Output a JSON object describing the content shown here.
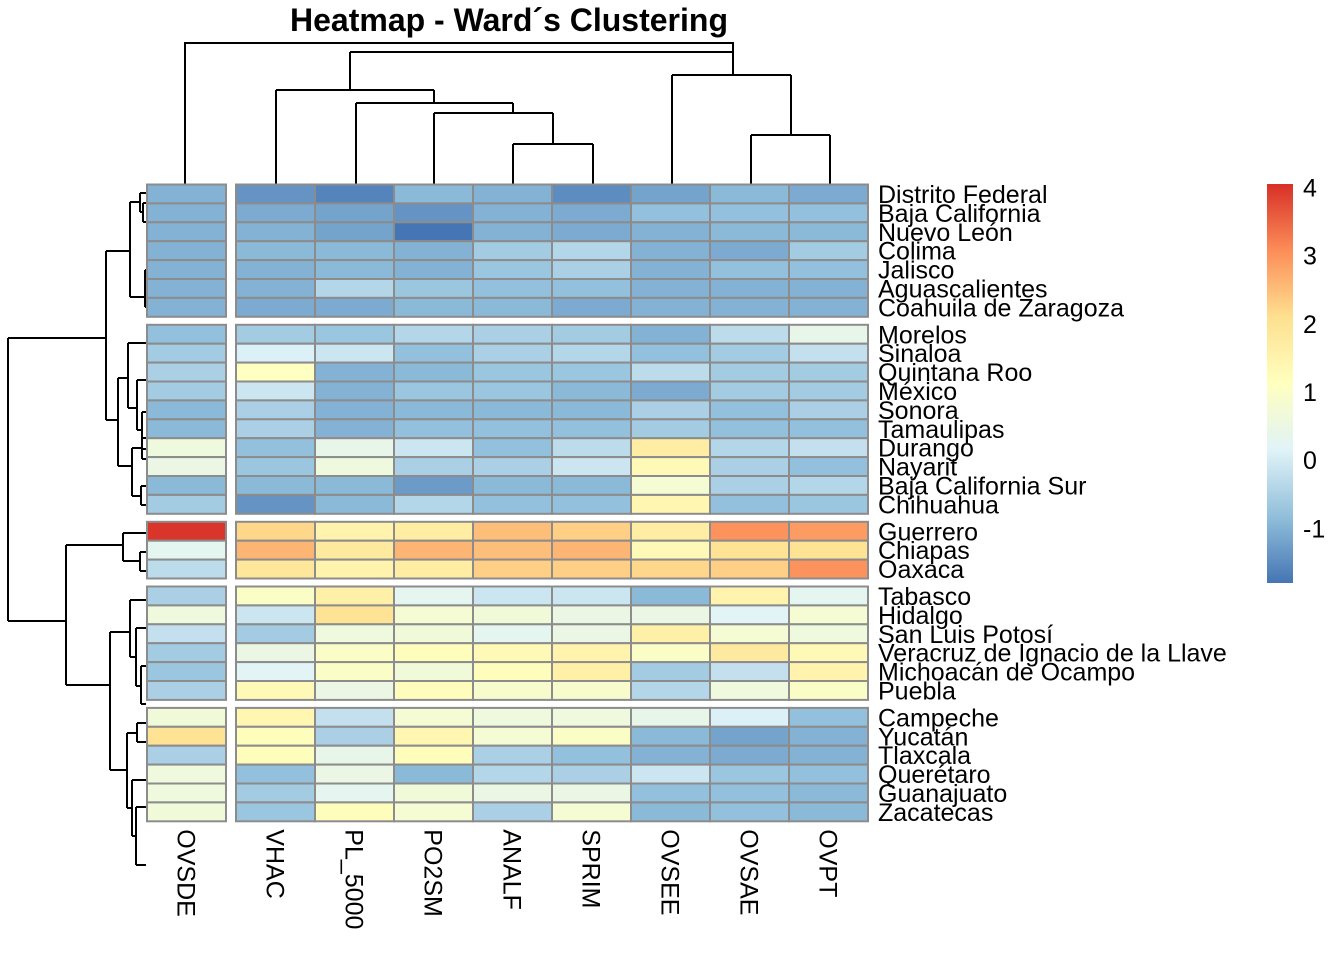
{
  "chart_data": {
    "type": "heatmap",
    "title": "Heatmap - Ward´s Clustering",
    "columns": [
      "OVSDE",
      "VHAC",
      "PL_5000",
      "PO2SM",
      "ANALF",
      "SPRIM",
      "OVSEE",
      "OVSAE",
      "OVPT"
    ],
    "column_gaps_after": [
      0
    ],
    "rows": [
      "Distrito Federal",
      "Baja California",
      "Nuevo León",
      "Colima",
      "Jalisco",
      "Aguascalientes",
      "Coahuila de Zaragoza",
      "Morelos",
      "Sinaloa",
      "Quintana Roo",
      "México",
      "Sonora",
      "Tamaulipas",
      "Durango",
      "Nayarit",
      "Baja California Sur",
      "Chihuahua",
      "Guerrero",
      "Chiapas",
      "Oaxaca",
      "Tabasco",
      "Hidalgo",
      "San Luis Potosí",
      "Veracruz de Ignacio de la Llave",
      "Michoacán de Ocampo",
      "Puebla",
      "Campeche",
      "Yucatán",
      "Tlaxcala",
      "Querétaro",
      "Guanajuato",
      "Zacatecas"
    ],
    "row_gaps_after": [
      6,
      16,
      19,
      25
    ],
    "values": [
      [
        -1.0,
        -1.4,
        -1.6,
        -0.9,
        -1.0,
        -1.5,
        -1.2,
        -0.9,
        -1.1
      ],
      [
        -1.0,
        -1.1,
        -1.2,
        -1.4,
        -1.0,
        -1.1,
        -0.8,
        -0.8,
        -0.8
      ],
      [
        -1.0,
        -1.0,
        -1.2,
        -1.8,
        -1.0,
        -1.1,
        -1.0,
        -0.9,
        -0.9
      ],
      [
        -1.0,
        -0.9,
        -0.9,
        -1.0,
        -0.6,
        -0.4,
        -1.0,
        -1.1,
        -0.6
      ],
      [
        -1.0,
        -1.0,
        -0.9,
        -1.0,
        -0.7,
        -0.5,
        -1.0,
        -0.8,
        -0.8
      ],
      [
        -1.0,
        -1.0,
        -0.4,
        -0.7,
        -0.8,
        -0.8,
        -1.0,
        -1.0,
        -1.0
      ],
      [
        -1.0,
        -1.1,
        -1.1,
        -0.9,
        -0.9,
        -1.1,
        -1.0,
        -1.0,
        -1.0
      ],
      [
        -0.8,
        -0.6,
        -0.7,
        -0.4,
        -0.5,
        -0.6,
        -1.0,
        -0.3,
        0.4
      ],
      [
        -0.6,
        0.1,
        -0.1,
        -0.8,
        -0.5,
        -0.4,
        -0.8,
        -0.6,
        -0.2
      ],
      [
        -0.5,
        1.1,
        -1.0,
        -0.9,
        -0.7,
        -0.7,
        -0.3,
        -0.6,
        -0.6
      ],
      [
        -0.6,
        -0.1,
        -1.0,
        -0.7,
        -0.7,
        -0.9,
        -1.1,
        -0.6,
        -0.6
      ],
      [
        -0.9,
        -0.5,
        -1.0,
        -0.9,
        -0.9,
        -0.9,
        -0.5,
        -0.8,
        -0.5
      ],
      [
        -0.9,
        -0.5,
        -1.0,
        -0.8,
        -0.8,
        -0.8,
        -0.6,
        -0.8,
        -0.8
      ],
      [
        0.6,
        -0.8,
        0.4,
        -0.1,
        -0.8,
        -0.3,
        1.7,
        -0.4,
        -0.2
      ],
      [
        0.5,
        -0.7,
        0.6,
        -0.5,
        -0.5,
        -0.1,
        1.3,
        -0.5,
        -0.8
      ],
      [
        -0.9,
        -0.9,
        -0.9,
        -1.3,
        -0.9,
        -0.9,
        0.8,
        -0.5,
        -0.4
      ],
      [
        -0.6,
        -1.4,
        -0.9,
        -0.4,
        -0.8,
        -0.8,
        1.4,
        -0.8,
        -0.7
      ],
      [
        4.0,
        2.2,
        1.5,
        1.7,
        2.5,
        2.3,
        1.7,
        3.0,
        2.9
      ],
      [
        0.3,
        2.6,
        1.8,
        2.6,
        2.5,
        2.6,
        1.3,
        2.0,
        2.0
      ],
      [
        -0.3,
        1.9,
        1.5,
        1.7,
        2.3,
        2.3,
        2.2,
        2.3,
        3.0
      ],
      [
        -0.5,
        1.0,
        1.6,
        0.3,
        -0.1,
        -0.1,
        -0.9,
        1.5,
        0.3
      ],
      [
        0.6,
        -0.1,
        2.0,
        0.8,
        0.7,
        0.5,
        0.5,
        0.2,
        0.8
      ],
      [
        -0.2,
        -0.6,
        0.6,
        0.7,
        0.3,
        0.5,
        1.6,
        0.8,
        0.6
      ],
      [
        -0.6,
        0.5,
        1.0,
        1.2,
        1.3,
        1.5,
        1.0,
        1.8,
        1.3
      ],
      [
        -0.7,
        0.2,
        1.0,
        0.7,
        1.2,
        1.6,
        -0.6,
        -0.2,
        1.5
      ],
      [
        -0.5,
        1.3,
        0.5,
        1.2,
        0.9,
        0.9,
        -0.4,
        0.6,
        1.0
      ],
      [
        0.7,
        1.4,
        -0.2,
        0.8,
        0.6,
        0.6,
        0.4,
        0.1,
        -0.8
      ],
      [
        2.0,
        1.2,
        -0.5,
        1.4,
        0.8,
        1.0,
        -0.9,
        -1.2,
        -1.0
      ],
      [
        -0.5,
        1.2,
        0.4,
        1.2,
        -0.5,
        -0.8,
        -1.0,
        -1.1,
        -1.0
      ],
      [
        0.6,
        -0.8,
        0.5,
        -0.9,
        -0.4,
        -0.5,
        -0.1,
        -0.7,
        -0.8
      ],
      [
        0.6,
        -0.6,
        0.3,
        0.7,
        0.5,
        0.5,
        -0.8,
        -0.8,
        -0.9
      ],
      [
        0.7,
        -0.7,
        1.2,
        0.8,
        -0.5,
        0.8,
        -0.9,
        -0.8,
        -0.9
      ]
    ],
    "color_scale": {
      "min": -1.8,
      "max": 4.05,
      "stops": [
        "#4575b4",
        "#91bfdb",
        "#e0f3f8",
        "#ffffbf",
        "#fee090",
        "#fc8d59",
        "#d73027"
      ],
      "ticks": [
        -1,
        0,
        1,
        2,
        3,
        4
      ],
      "tick_labels": [
        "-1",
        "0",
        "1",
        "2",
        "3",
        "4"
      ]
    },
    "column_dendrogram": true,
    "row_dendrogram": true,
    "cell_border_color": "#8c8c8c"
  }
}
